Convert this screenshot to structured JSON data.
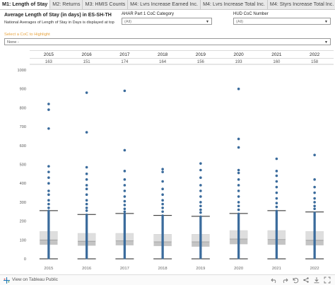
{
  "tabs": [
    {
      "label": "M1: Length of Stay",
      "active": true
    },
    {
      "label": "M2: Returns",
      "active": false
    },
    {
      "label": "M3: HMIS Counts",
      "active": false
    },
    {
      "label": "M4: Lvrs Increase Earned Inc.",
      "active": false
    },
    {
      "label": "M4: Lvrs Increase Total Inc.",
      "active": false
    },
    {
      "label": "M4: Styrs Increase Total Inc.",
      "active": false
    }
  ],
  "header": {
    "title": "Average Length of Stay (in days) in ES-SH-TH",
    "subtitle": "National Averages of Length of Stay in Days is displayed at top"
  },
  "filters": {
    "ahar_label": "AHAR Part 1 CoC Category",
    "ahar_value": "(All)",
    "hud_label": "HUD CoC Number",
    "hud_value": "(All)",
    "highlight_label": "Select a CoC to Highlight",
    "highlight_value": "None -"
  },
  "footer": {
    "link": "View on Tableau Public"
  },
  "colors": {
    "dot": "#3a6b9c",
    "box_upper": "#dedede",
    "box_lower": "#c4c4c4",
    "median": "#9b9b9b",
    "whisker": "#222222",
    "highlight": "#e8a33d"
  },
  "chart_data": {
    "type": "scatter",
    "subtype": "box-plot-with-dots",
    "categories": [
      "2015",
      "2016",
      "2017",
      "2018",
      "2019",
      "2020",
      "2021",
      "2022"
    ],
    "national_averages": [
      163,
      151,
      174,
      164,
      156,
      193,
      160,
      158
    ],
    "ylim": [
      0,
      1000
    ],
    "yticks": [
      0,
      100,
      200,
      300,
      400,
      500,
      600,
      700,
      800,
      900,
      1000
    ],
    "grid": false,
    "boxes": [
      {
        "min": 0,
        "q1": 75,
        "median": 100,
        "q3": 145,
        "max": 255
      },
      {
        "min": 0,
        "q1": 70,
        "median": 93,
        "q3": 135,
        "max": 235
      },
      {
        "min": 0,
        "q1": 72,
        "median": 95,
        "q3": 135,
        "max": 240
      },
      {
        "min": 0,
        "q1": 68,
        "median": 90,
        "q3": 130,
        "max": 230
      },
      {
        "min": 0,
        "q1": 65,
        "median": 90,
        "q3": 130,
        "max": 225
      },
      {
        "min": 0,
        "q1": 78,
        "median": 105,
        "q3": 150,
        "max": 240
      },
      {
        "min": 0,
        "q1": 75,
        "median": 102,
        "q3": 150,
        "max": 255
      },
      {
        "min": 0,
        "q1": 72,
        "median": 98,
        "q3": 145,
        "max": 248
      }
    ],
    "outliers": [
      [
        820,
        790,
        690,
        490,
        460,
        430,
        400,
        360,
        340,
        310,
        290,
        270
      ],
      [
        880,
        670,
        485,
        450,
        420,
        390,
        370,
        340,
        310,
        290,
        270,
        255
      ],
      [
        890,
        575,
        465,
        420,
        390,
        360,
        330,
        305,
        285,
        265,
        250
      ],
      [
        475,
        460,
        410,
        370,
        340,
        310,
        290,
        270,
        250
      ],
      [
        505,
        470,
        430,
        390,
        360,
        330,
        300,
        280,
        260,
        245
      ],
      [
        900,
        635,
        590,
        470,
        455,
        420,
        390,
        360,
        330,
        300,
        280,
        260
      ],
      [
        530,
        465,
        440,
        410,
        380,
        350,
        320,
        295,
        275
      ],
      [
        550,
        420,
        380,
        350,
        320,
        300,
        280,
        265
      ]
    ]
  }
}
